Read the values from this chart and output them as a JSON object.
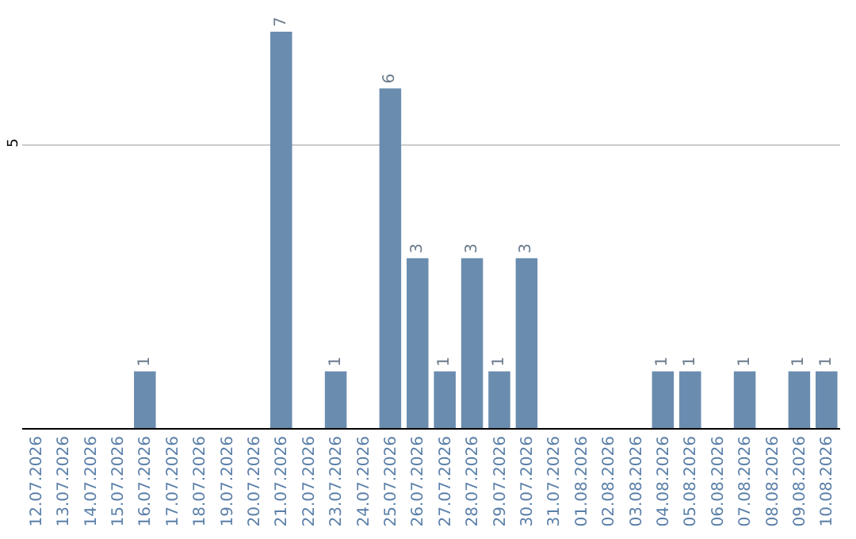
{
  "chart_data": {
    "type": "bar",
    "categories": [
      "12.07.2026",
      "13.07.2026",
      "14.07.2026",
      "15.07.2026",
      "16.07.2026",
      "17.07.2026",
      "18.07.2026",
      "19.07.2026",
      "20.07.2026",
      "21.07.2026",
      "22.07.2026",
      "23.07.2026",
      "24.07.2026",
      "25.07.2026",
      "26.07.2026",
      "27.07.2026",
      "28.07.2026",
      "29.07.2026",
      "30.07.2026",
      "31.07.2026",
      "01.08.2026",
      "02.08.2026",
      "03.08.2026",
      "04.08.2026",
      "05.08.2026",
      "06.08.2026",
      "07.08.2026",
      "08.08.2026",
      "09.08.2026",
      "10.08.2026"
    ],
    "values": [
      null,
      null,
      null,
      null,
      1,
      null,
      null,
      null,
      null,
      7,
      null,
      1,
      null,
      6,
      3,
      1,
      3,
      1,
      3,
      null,
      null,
      null,
      null,
      1,
      1,
      null,
      1,
      null,
      1,
      1
    ],
    "color": "#6a8caf",
    "ylim": [
      0,
      7
    ],
    "yticks": [
      5
    ],
    "grid": "y",
    "data_labels": true
  }
}
